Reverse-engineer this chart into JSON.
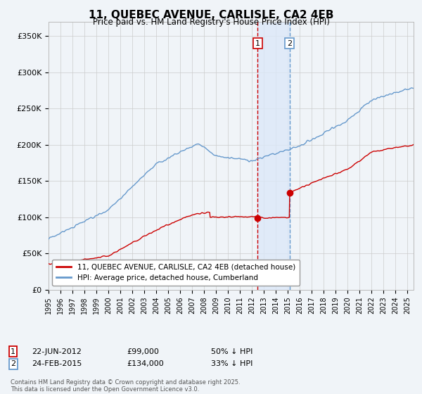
{
  "title": "11, QUEBEC AVENUE, CARLISLE, CA2 4EB",
  "subtitle": "Price paid vs. HM Land Registry's House Price Index (HPI)",
  "ylim": [
    0,
    370000
  ],
  "yticks": [
    0,
    50000,
    100000,
    150000,
    200000,
    250000,
    300000,
    350000
  ],
  "ytick_labels": [
    "£0",
    "£50K",
    "£100K",
    "£150K",
    "£200K",
    "£250K",
    "£300K",
    "£350K"
  ],
  "hpi_color": "#6699cc",
  "price_color": "#cc0000",
  "vline1_color": "#cc0000",
  "vline2_color": "#6699cc",
  "vshade_color": "#dce8f8",
  "background_color": "#f0f4f8",
  "plot_bg_color": "#f0f4f8",
  "grid_color": "#cccccc",
  "purchase1_x": 2012.472,
  "purchase1_price": 99000,
  "purchase2_x": 2015.143,
  "purchase2_price": 134000,
  "legend_line1": "11, QUEBEC AVENUE, CARLISLE, CA2 4EB (detached house)",
  "legend_line2": "HPI: Average price, detached house, Cumberland",
  "footnote": "Contains HM Land Registry data © Crown copyright and database right 2025.\nThis data is licensed under the Open Government Licence v3.0.",
  "table_row1": [
    "1",
    "22-JUN-2012",
    "£99,000",
    "50% ↓ HPI"
  ],
  "table_row2": [
    "2",
    "24-FEB-2015",
    "£134,000",
    "33% ↓ HPI"
  ],
  "xmin": 1995,
  "xmax": 2025.5,
  "noise_scale_hpi": 1800,
  "noise_scale_price": 1000
}
